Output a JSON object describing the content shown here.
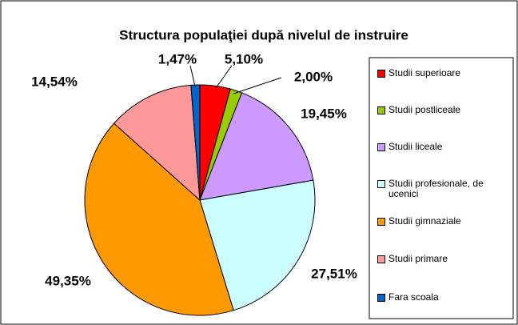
{
  "chart_data": {
    "type": "pie",
    "title": "Structura populaţiei după nivelul de instruire",
    "categories": [
      "Studii superioare",
      "Studii postliceale",
      "Studii liceale",
      "Studii profesionale, de ucenici",
      "Studii gimnaziale",
      "Studii primare",
      "Fara scoala"
    ],
    "values": [
      5.1,
      2.0,
      19.45,
      27.51,
      49.35,
      14.54,
      1.47
    ],
    "value_labels": [
      "5,10%",
      "2,00%",
      "19,45%",
      "27,51%",
      "49,35%",
      "14,54%",
      "1,47%"
    ],
    "colors": [
      "#ff0000",
      "#99cc00",
      "#cc99ff",
      "#ccffff",
      "#ff9900",
      "#ff9999",
      "#0066cc"
    ],
    "legend": "right"
  }
}
